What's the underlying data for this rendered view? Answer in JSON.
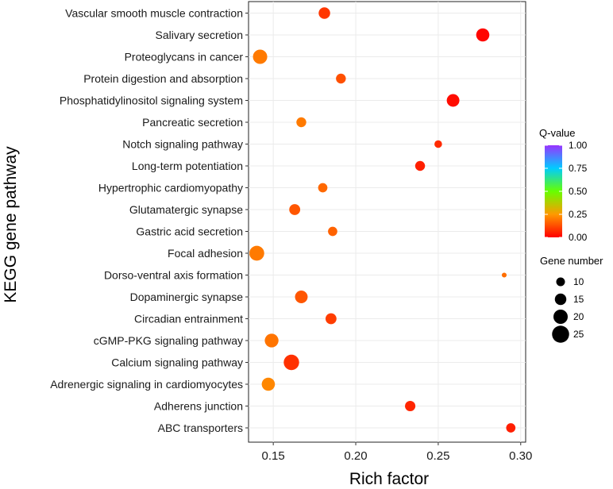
{
  "chart_data": {
    "type": "scatter",
    "xlabel": "Rich factor",
    "ylabel": "KEGG gene pathway",
    "xlim": [
      0.135,
      0.303
    ],
    "xticks": [
      {
        "value": 0.15,
        "label": "0.15"
      },
      {
        "value": 0.2,
        "label": "0.20"
      },
      {
        "value": 0.25,
        "label": "0.25"
      },
      {
        "value": 0.3,
        "label": "0.30"
      }
    ],
    "points": [
      {
        "pathway": "Vascular smooth muscle contraction",
        "rich_factor": 0.181,
        "q_value": 0.09,
        "gene_number": 15
      },
      {
        "pathway": "Salivary secretion",
        "rich_factor": 0.277,
        "q_value": 0.01,
        "gene_number": 18
      },
      {
        "pathway": "Proteoglycans in cancer",
        "rich_factor": 0.142,
        "q_value": 0.2,
        "gene_number": 20
      },
      {
        "pathway": "Protein digestion and absorption",
        "rich_factor": 0.191,
        "q_value": 0.13,
        "gene_number": 12
      },
      {
        "pathway": "Phosphatidylinositol signaling system",
        "rich_factor": 0.259,
        "q_value": 0.02,
        "gene_number": 17
      },
      {
        "pathway": "Pancreatic secretion",
        "rich_factor": 0.167,
        "q_value": 0.2,
        "gene_number": 12
      },
      {
        "pathway": "Notch signaling pathway",
        "rich_factor": 0.25,
        "q_value": 0.07,
        "gene_number": 8
      },
      {
        "pathway": "Long-term potentiation",
        "rich_factor": 0.239,
        "q_value": 0.05,
        "gene_number": 12
      },
      {
        "pathway": "Hypertrophic cardiomyopathy ",
        "rich_factor": 0.18,
        "q_value": 0.17,
        "gene_number": 11
      },
      {
        "pathway": "Glutamatergic synapse",
        "rich_factor": 0.163,
        "q_value": 0.14,
        "gene_number": 14
      },
      {
        "pathway": "Gastric acid secretion",
        "rich_factor": 0.186,
        "q_value": 0.16,
        "gene_number": 11
      },
      {
        "pathway": "Focal adhesion",
        "rich_factor": 0.14,
        "q_value": 0.2,
        "gene_number": 21
      },
      {
        "pathway": "Dorso-ventral axis formation",
        "rich_factor": 0.29,
        "q_value": 0.18,
        "gene_number": 3
      },
      {
        "pathway": "Dopaminergic synapse",
        "rich_factor": 0.167,
        "q_value": 0.14,
        "gene_number": 17
      },
      {
        "pathway": "Circadian entrainment",
        "rich_factor": 0.185,
        "q_value": 0.1,
        "gene_number": 14
      },
      {
        "pathway": "cGMP-PKG signaling pathway",
        "rich_factor": 0.149,
        "q_value": 0.19,
        "gene_number": 19
      },
      {
        "pathway": "Calcium signaling pathway",
        "rich_factor": 0.161,
        "q_value": 0.08,
        "gene_number": 22
      },
      {
        "pathway": "Adrenergic signaling in cardiomyocytes",
        "rich_factor": 0.147,
        "q_value": 0.22,
        "gene_number": 18
      },
      {
        "pathway": "Adherens junction",
        "rich_factor": 0.233,
        "q_value": 0.06,
        "gene_number": 13
      },
      {
        "pathway": "ABC transporters",
        "rich_factor": 0.294,
        "q_value": 0.05,
        "gene_number": 11
      }
    ],
    "color_legend": {
      "title": "Q-value",
      "ticks": [
        {
          "value": 1.0,
          "label": "1.00"
        },
        {
          "value": 0.75,
          "label": "0.75"
        },
        {
          "value": 0.5,
          "label": "0.50"
        },
        {
          "value": 0.25,
          "label": "0.25"
        },
        {
          "value": 0.0,
          "label": "0.00"
        }
      ],
      "colors": [
        "#ff0000",
        "#ff9900",
        "#66ff00",
        "#00ccff",
        "#9933ff"
      ]
    },
    "size_legend": {
      "title": "Gene number",
      "entries": [
        {
          "value": 10,
          "label": "10"
        },
        {
          "value": 15,
          "label": "15"
        },
        {
          "value": 20,
          "label": "20"
        },
        {
          "value": 25,
          "label": "25"
        }
      ]
    },
    "grid": true,
    "legend_position": "right"
  }
}
